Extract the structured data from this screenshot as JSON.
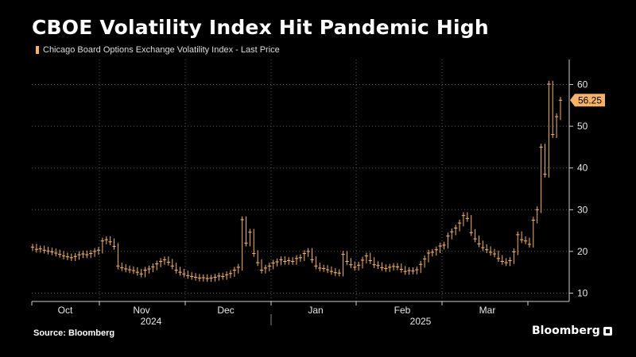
{
  "title": "CBOE Volatility Index Hit Pandemic High",
  "legend_label": "Chicago Board Options Exchange Volatility Index - Last Price",
  "source": "Source: Bloomberg",
  "brand": "Bloomberg",
  "colors": {
    "series": "#f6b26b",
    "grid": "#5a5a5a",
    "axis": "#cfcfcf",
    "background": "#000000"
  },
  "chart_data": {
    "type": "line",
    "title": "CBOE Volatility Index Hit Pandemic High",
    "series": [
      {
        "name": "Chicago Board Options Exchange Volatility Index - Last Price",
        "values": [
          21,
          20.5,
          20.6,
          20.3,
          20.1,
          19.9,
          19.6,
          19.3,
          18.9,
          18.7,
          18.5,
          18.8,
          19.2,
          19.4,
          19.2,
          19.5,
          20,
          20.3,
          22.5,
          22.8,
          22.3,
          21.2,
          16.5,
          16.1,
          15.8,
          15.6,
          15.4,
          15,
          14.6,
          15.5,
          15.8,
          16.3,
          17,
          17.6,
          18,
          17.4,
          16.5,
          15.5,
          15,
          14.6,
          14.2,
          14,
          13.8,
          13.6,
          13.7,
          13.5,
          13.6,
          13.8,
          14.1,
          14,
          14.4,
          14.7,
          15.5,
          16.2,
          27.6,
          22,
          24.6,
          19.5,
          17.3,
          15.5,
          16,
          16.5,
          17.2,
          17.5,
          18,
          17.6,
          17.8,
          17.6,
          18.3,
          18.5,
          19.5,
          20,
          18,
          16.5,
          16,
          15.9,
          15.6,
          15.2,
          14.9,
          14.8,
          19.3,
          17.6,
          16.8,
          16.2,
          16.7,
          17.9,
          18.9,
          17.8,
          16.8,
          16.6,
          16.1,
          15.9,
          16.2,
          16.4,
          16.3,
          15.7,
          15.2,
          15.4,
          15.3,
          15.6,
          16.9,
          18.2,
          19.6,
          19.8,
          20.4,
          21.3,
          21.5,
          23.7,
          24.7,
          25.6,
          26.8,
          28.6,
          27.9,
          24.5,
          23,
          21.8,
          20.9,
          20.4,
          19.8,
          19.4,
          18.3,
          17.6,
          17.3,
          17.8,
          19.9,
          24,
          22.8,
          22.5,
          21.7,
          27.5,
          30,
          45,
          38.5,
          60.1,
          48,
          52.3,
          56.25
        ]
      }
    ],
    "yticks": [
      10,
      20,
      30,
      40,
      50,
      60
    ],
    "ylim": [
      8,
      66
    ],
    "last_value_label": "56.25",
    "x_month_labels": [
      "Oct",
      "Nov",
      "Dec",
      "Jan",
      "Feb",
      "Mar"
    ],
    "x_year_labels": [
      "2024",
      "2025"
    ],
    "grid": true,
    "grid_style": "dotted"
  }
}
